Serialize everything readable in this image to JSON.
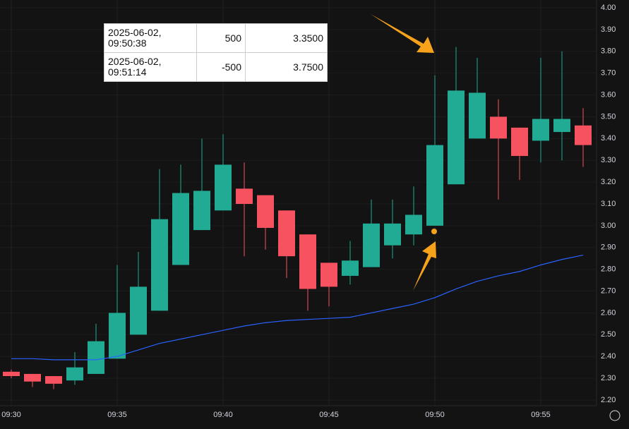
{
  "chart_data": {
    "type": "candlestick",
    "categories": [
      "09:30",
      null,
      null,
      null,
      null,
      "09:35",
      null,
      null,
      null,
      null,
      "09:40",
      null,
      null,
      null,
      null,
      "09:45",
      null,
      null,
      null,
      null,
      "09:50",
      null,
      null,
      null,
      null,
      "09:55",
      null,
      null
    ],
    "open": [
      2.33,
      2.32,
      2.31,
      2.29,
      2.32,
      2.39,
      2.5,
      2.61,
      2.82,
      2.98,
      3.07,
      3.17,
      3.14,
      3.07,
      2.96,
      2.83,
      2.77,
      2.81,
      2.91,
      2.96,
      3.0,
      3.19,
      3.4,
      3.5,
      3.45,
      3.39,
      3.43,
      3.46
    ],
    "high": [
      2.34,
      2.32,
      2.31,
      2.42,
      2.55,
      2.82,
      2.88,
      3.26,
      3.28,
      3.4,
      3.42,
      3.29,
      3.14,
      3.07,
      2.96,
      2.83,
      2.93,
      3.12,
      3.12,
      3.18,
      3.69,
      3.82,
      3.77,
      3.58,
      3.45,
      3.77,
      3.8,
      3.54
    ],
    "low": [
      2.3,
      2.26,
      2.25,
      2.27,
      2.32,
      2.39,
      2.5,
      2.61,
      2.82,
      2.98,
      3.07,
      2.86,
      2.89,
      2.76,
      2.61,
      2.63,
      2.73,
      2.81,
      2.85,
      2.91,
      3.0,
      3.19,
      3.4,
      3.12,
      3.21,
      3.29,
      3.3,
      3.27
    ],
    "close": [
      2.31,
      2.285,
      2.275,
      2.35,
      2.47,
      2.6,
      2.72,
      3.03,
      3.15,
      3.16,
      3.28,
      3.1,
      2.99,
      2.86,
      2.71,
      2.72,
      2.84,
      3.01,
      3.01,
      3.05,
      3.37,
      3.62,
      3.61,
      3.4,
      3.32,
      3.49,
      3.49,
      3.37
    ],
    "up_color": "#22ab94",
    "down_color": "#f7525f",
    "series": [
      {
        "color": "#2962ff",
        "values": [
          2.39,
          2.39,
          2.385,
          2.385,
          2.385,
          2.4,
          2.43,
          2.46,
          2.48,
          2.5,
          2.52,
          2.54,
          2.555,
          2.565,
          2.57,
          2.575,
          2.58,
          2.6,
          2.62,
          2.64,
          2.67,
          2.71,
          2.745,
          2.77,
          2.79,
          2.82,
          2.845,
          2.865
        ]
      }
    ],
    "ylim": [
      2.2,
      4.0
    ],
    "yticks": [
      {
        "value": 2.2,
        "label": "2.20"
      },
      {
        "value": 2.3,
        "label": "2.30"
      },
      {
        "value": 2.4,
        "label": "2.40"
      },
      {
        "value": 2.5,
        "label": "2.50"
      },
      {
        "value": 2.6,
        "label": "2.60"
      },
      {
        "value": 2.7,
        "label": "2.70"
      },
      {
        "value": 2.8,
        "label": "2.80"
      },
      {
        "value": 2.9,
        "label": "2.90"
      },
      {
        "value": 3.0,
        "label": "3.00"
      },
      {
        "value": 3.1,
        "label": "3.10"
      },
      {
        "value": 3.2,
        "label": "3.20"
      },
      {
        "value": 3.3,
        "label": "3.30"
      },
      {
        "value": 3.4,
        "label": "3.40"
      },
      {
        "value": 3.5,
        "label": "3.50"
      },
      {
        "value": 3.6,
        "label": "3.60"
      },
      {
        "value": 3.7,
        "label": "3.70"
      },
      {
        "value": 3.8,
        "label": "3.80"
      },
      {
        "value": 3.9,
        "label": "3.90"
      },
      {
        "value": 4.0,
        "label": "4.00"
      }
    ],
    "grid": true,
    "trades": {
      "rows": [
        [
          "2025-06-02, 09:50:38",
          "500",
          "3.3500"
        ],
        [
          "2025-06-02, 09:51:14",
          "-500",
          "3.7500"
        ]
      ]
    }
  }
}
